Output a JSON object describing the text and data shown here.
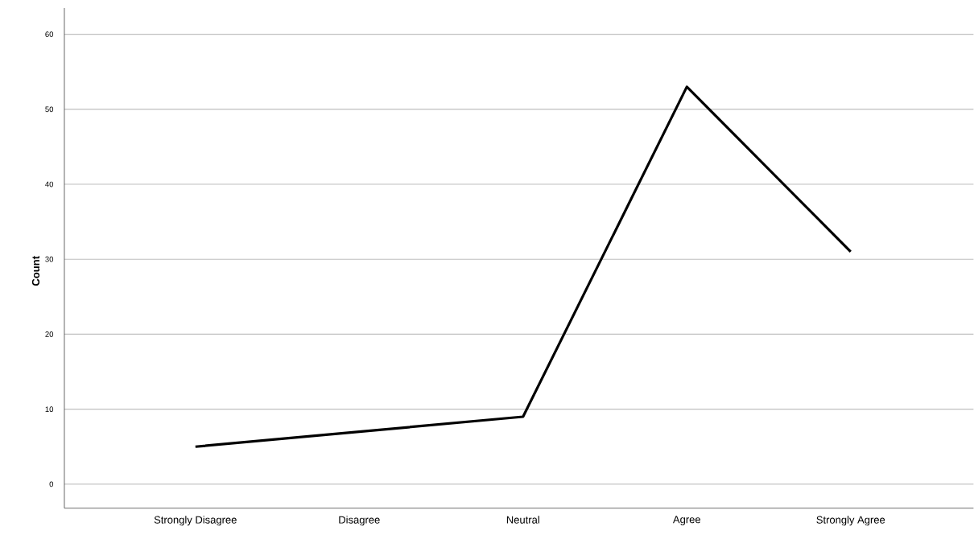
{
  "chart_data": {
    "type": "line",
    "ylabel": "Count",
    "categories": [
      "Strongly Disagree",
      "Disagree",
      "Neutral",
      "Agree",
      "Strongly Agree"
    ],
    "values": [
      5,
      7,
      9,
      53,
      31
    ],
    "color": "#000000",
    "ylim": [
      -3.2,
      63.5
    ],
    "yticks": [
      0,
      10,
      20,
      30,
      40,
      50,
      60
    ],
    "grid": "y",
    "marker": "none",
    "line_style": "solid"
  }
}
